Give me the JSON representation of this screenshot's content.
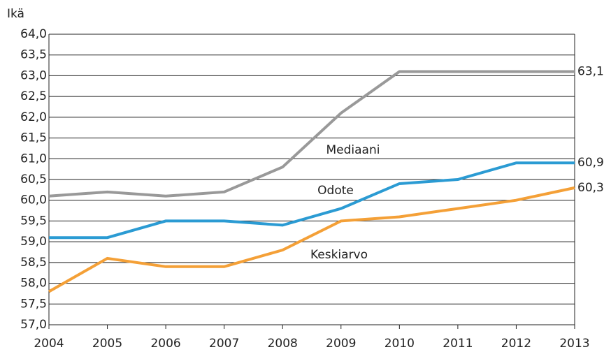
{
  "chart_data": {
    "type": "line",
    "y_label": "Ikä",
    "x": [
      2004,
      2005,
      2006,
      2007,
      2008,
      2009,
      2010,
      2011,
      2012,
      2013
    ],
    "xlim": [
      2004,
      2013
    ],
    "xticks": [
      2004,
      2005,
      2006,
      2007,
      2008,
      2009,
      2010,
      2011,
      2012,
      2013
    ],
    "ylim": [
      57,
      64
    ],
    "yticks": [
      {
        "value": 57,
        "label": "57,0"
      },
      {
        "value": 57.5,
        "label": "57,5"
      },
      {
        "value": 58,
        "label": "58,0"
      },
      {
        "value": 58.5,
        "label": "58,5"
      },
      {
        "value": 59,
        "label": "59,0"
      },
      {
        "value": 59.5,
        "label": "59,5"
      },
      {
        "value": 60,
        "label": "60,0"
      },
      {
        "value": 60.5,
        "label": "60,5"
      },
      {
        "value": 61,
        "label": "61,0"
      },
      {
        "value": 61.5,
        "label": "61,5"
      },
      {
        "value": 62,
        "label": "62,0"
      },
      {
        "value": 62.5,
        "label": "62,5"
      },
      {
        "value": 63,
        "label": "63,0"
      },
      {
        "value": 63.5,
        "label": "63,5"
      },
      {
        "value": 64,
        "label": "64,0"
      }
    ],
    "grid": true,
    "series": [
      {
        "name": "Mediaani",
        "color": "#999999",
        "values": [
          60.1,
          60.2,
          60.1,
          60.2,
          60.8,
          62.1,
          63.1,
          63.1,
          63.1,
          63.1
        ],
        "value_labels": [
          null,
          null,
          null,
          null,
          null,
          null,
          null,
          null,
          null,
          "63,1"
        ]
      },
      {
        "name": "Odote",
        "color": "#2b9bd3",
        "values": [
          59.1,
          59.1,
          59.5,
          59.5,
          59.4,
          59.8,
          60.4,
          60.5,
          60.9,
          60.9
        ],
        "value_labels": [
          null,
          null,
          null,
          null,
          null,
          null,
          null,
          null,
          null,
          "60,9"
        ]
      },
      {
        "name": "Keskiarvo",
        "color": "#f4a037",
        "values": [
          57.8,
          58.6,
          58.4,
          58.4,
          58.8,
          59.5,
          59.6,
          59.8,
          60.0,
          60.3
        ],
        "value_labels": [
          null,
          null,
          null,
          null,
          null,
          null,
          null,
          null,
          null,
          "60,3"
        ]
      }
    ]
  }
}
